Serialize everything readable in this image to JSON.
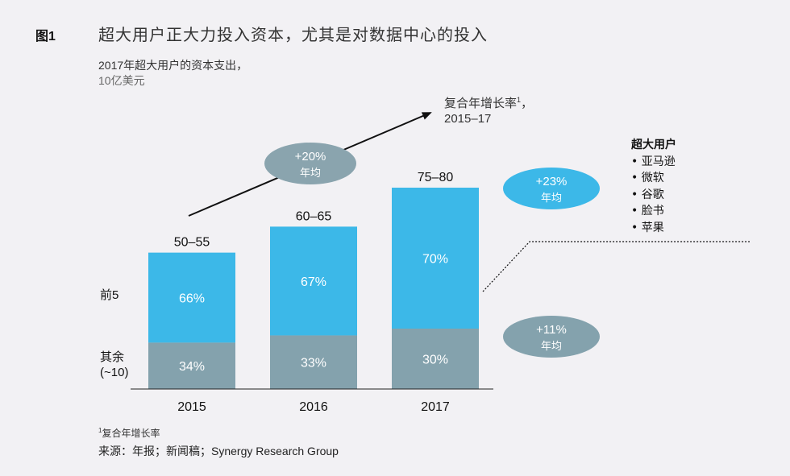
{
  "figure_label": "图1",
  "title": "超大用户正大力投入资本，尤其是对数据中心的投入",
  "subtitle_line1": "2017年超大用户的资本支出，",
  "subtitle_line2": "10亿美元",
  "cagr_header": {
    "label": "复合年增长率",
    "sup": "1",
    "suffix": "，",
    "period": "2015–17"
  },
  "row_labels": {
    "top": "前5",
    "others_line1": "其余",
    "others_line2": "(~10)"
  },
  "hyperscalers": {
    "title": "超大用户",
    "items": [
      "• 亚马逊",
      "• 微软",
      "• 谷歌",
      "• 脸书",
      "• 苹果"
    ]
  },
  "footnote": {
    "sup": "1",
    "text": "复合年增长率"
  },
  "source": "来源：年报；新闻稿；Synergy Research Group",
  "colors": {
    "top5": "#3cb8e8",
    "others": "#84a2ad",
    "ellipse_total": "#8aa4ae",
    "ellipse_top": "#3cb8e8",
    "ellipse_others": "#84a2ad",
    "text_on_bar": "#ffffff"
  },
  "chart_data": {
    "type": "bar",
    "stacked": true,
    "normalized_percent": true,
    "categories": [
      "2015",
      "2016",
      "2017"
    ],
    "totals": [
      "50–55",
      "60–65",
      "75–80"
    ],
    "series": [
      {
        "name": "其余",
        "values": [
          34,
          33,
          30
        ],
        "labels": [
          "34%",
          "33%",
          "30%"
        ]
      },
      {
        "name": "前5",
        "values": [
          66,
          67,
          70
        ],
        "labels": [
          "66%",
          "67%",
          "70%"
        ]
      }
    ],
    "total_range_values": [
      [
        50,
        55
      ],
      [
        60,
        65
      ],
      [
        75,
        80
      ]
    ],
    "annotations": {
      "total_cagr": {
        "value": "+20%",
        "label": "年均"
      },
      "top5_cagr": {
        "value": "+23%",
        "label": "年均"
      },
      "others_cagr": {
        "value": "+11%",
        "label": "年均"
      }
    }
  }
}
